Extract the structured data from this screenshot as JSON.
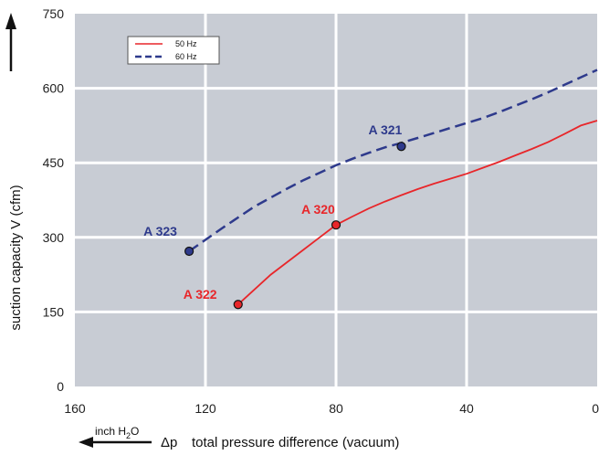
{
  "chart_data": {
    "type": "line",
    "title": "",
    "ylabel": "suction capacity V (cfm)",
    "xlabel": "total pressure difference (vacuum)",
    "xlabel_symbol": "Δp",
    "xunit_prefix": "inch H",
    "xunit_sub": "2",
    "xunit_suffix": "O",
    "xlim": [
      160,
      0
    ],
    "ylim": [
      0,
      750
    ],
    "xticks": [
      "160",
      "120",
      "80",
      "40",
      "0"
    ],
    "yticks": [
      "0",
      "150",
      "300",
      "450",
      "600",
      "750"
    ],
    "grid": true,
    "legend_position": "top-left",
    "series": [
      {
        "name": "50 Hz",
        "color": "#e8262a",
        "style": "solid",
        "x": [
          110,
          105,
          100,
          95,
          90,
          85,
          80,
          75,
          70,
          65,
          60,
          55,
          50,
          45,
          40,
          35,
          30,
          25,
          20,
          15,
          10,
          5,
          0
        ],
        "y": [
          165,
          195,
          225,
          250,
          275,
          300,
          325,
          342,
          358,
          372,
          385,
          397,
          408,
          418,
          428,
          440,
          452,
          465,
          478,
          492,
          508,
          525,
          535
        ]
      },
      {
        "name": "60 Hz",
        "color": "#2e3a8c",
        "style": "dashed",
        "x": [
          125,
          120,
          115,
          110,
          105,
          100,
          95,
          90,
          85,
          80,
          75,
          70,
          65,
          60,
          55,
          50,
          45,
          40,
          35,
          30,
          25,
          20,
          15,
          10,
          5,
          0
        ],
        "y": [
          272,
          295,
          318,
          340,
          362,
          380,
          398,
          415,
          430,
          445,
          458,
          470,
          481,
          490,
          500,
          510,
          520,
          530,
          540,
          552,
          565,
          578,
          592,
          607,
          622,
          637
        ]
      }
    ],
    "points": [
      {
        "label": "A 322",
        "x": 110,
        "y": 165,
        "color": "#e8262a"
      },
      {
        "label": "A 320",
        "x": 80,
        "y": 325,
        "color": "#e8262a"
      },
      {
        "label": "A 323",
        "x": 125,
        "y": 272,
        "color": "#2e3a8c"
      },
      {
        "label": "A 321",
        "x": 60,
        "y": 483,
        "color": "#2e3a8c"
      }
    ]
  }
}
